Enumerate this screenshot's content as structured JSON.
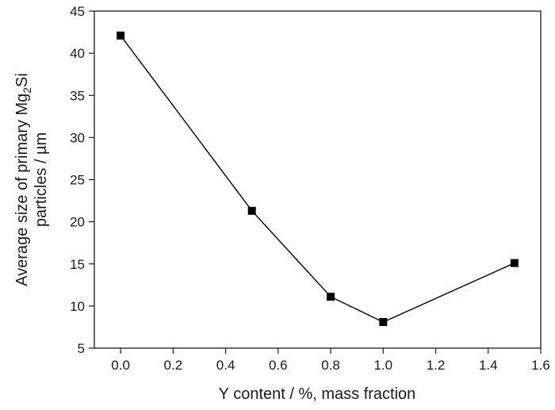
{
  "chart_data": {
    "type": "line",
    "title": "",
    "xlabel": "Y content / %, mass fraction",
    "ylabel_line1_pre": "Average size of primary Mg",
    "ylabel_line1_sub": "2",
    "ylabel_line1_post": "Si",
    "ylabel_line2": "particles / µm",
    "xlim": [
      -0.1,
      1.6
    ],
    "ylim": [
      5,
      45
    ],
    "xticks": [
      0.0,
      0.2,
      0.4,
      0.6,
      0.8,
      1.0,
      1.2,
      1.4,
      1.6
    ],
    "xtick_labels": [
      "0.0",
      "0.2",
      "0.4",
      "0.6",
      "0.8",
      "1.0",
      "1.2",
      "1.4",
      "1.6"
    ],
    "yticks": [
      5,
      10,
      15,
      20,
      25,
      30,
      35,
      40,
      45
    ],
    "ytick_labels": [
      "5",
      "10",
      "15",
      "20",
      "25",
      "30",
      "35",
      "40",
      "45"
    ],
    "grid": false,
    "legend": "none",
    "series": [
      {
        "x": [
          0.0,
          0.5,
          0.8,
          1.0,
          1.5
        ],
        "y": [
          42.1,
          21.3,
          11.1,
          8.1,
          15.1
        ],
        "marker": "square",
        "color": "#000000"
      }
    ]
  }
}
